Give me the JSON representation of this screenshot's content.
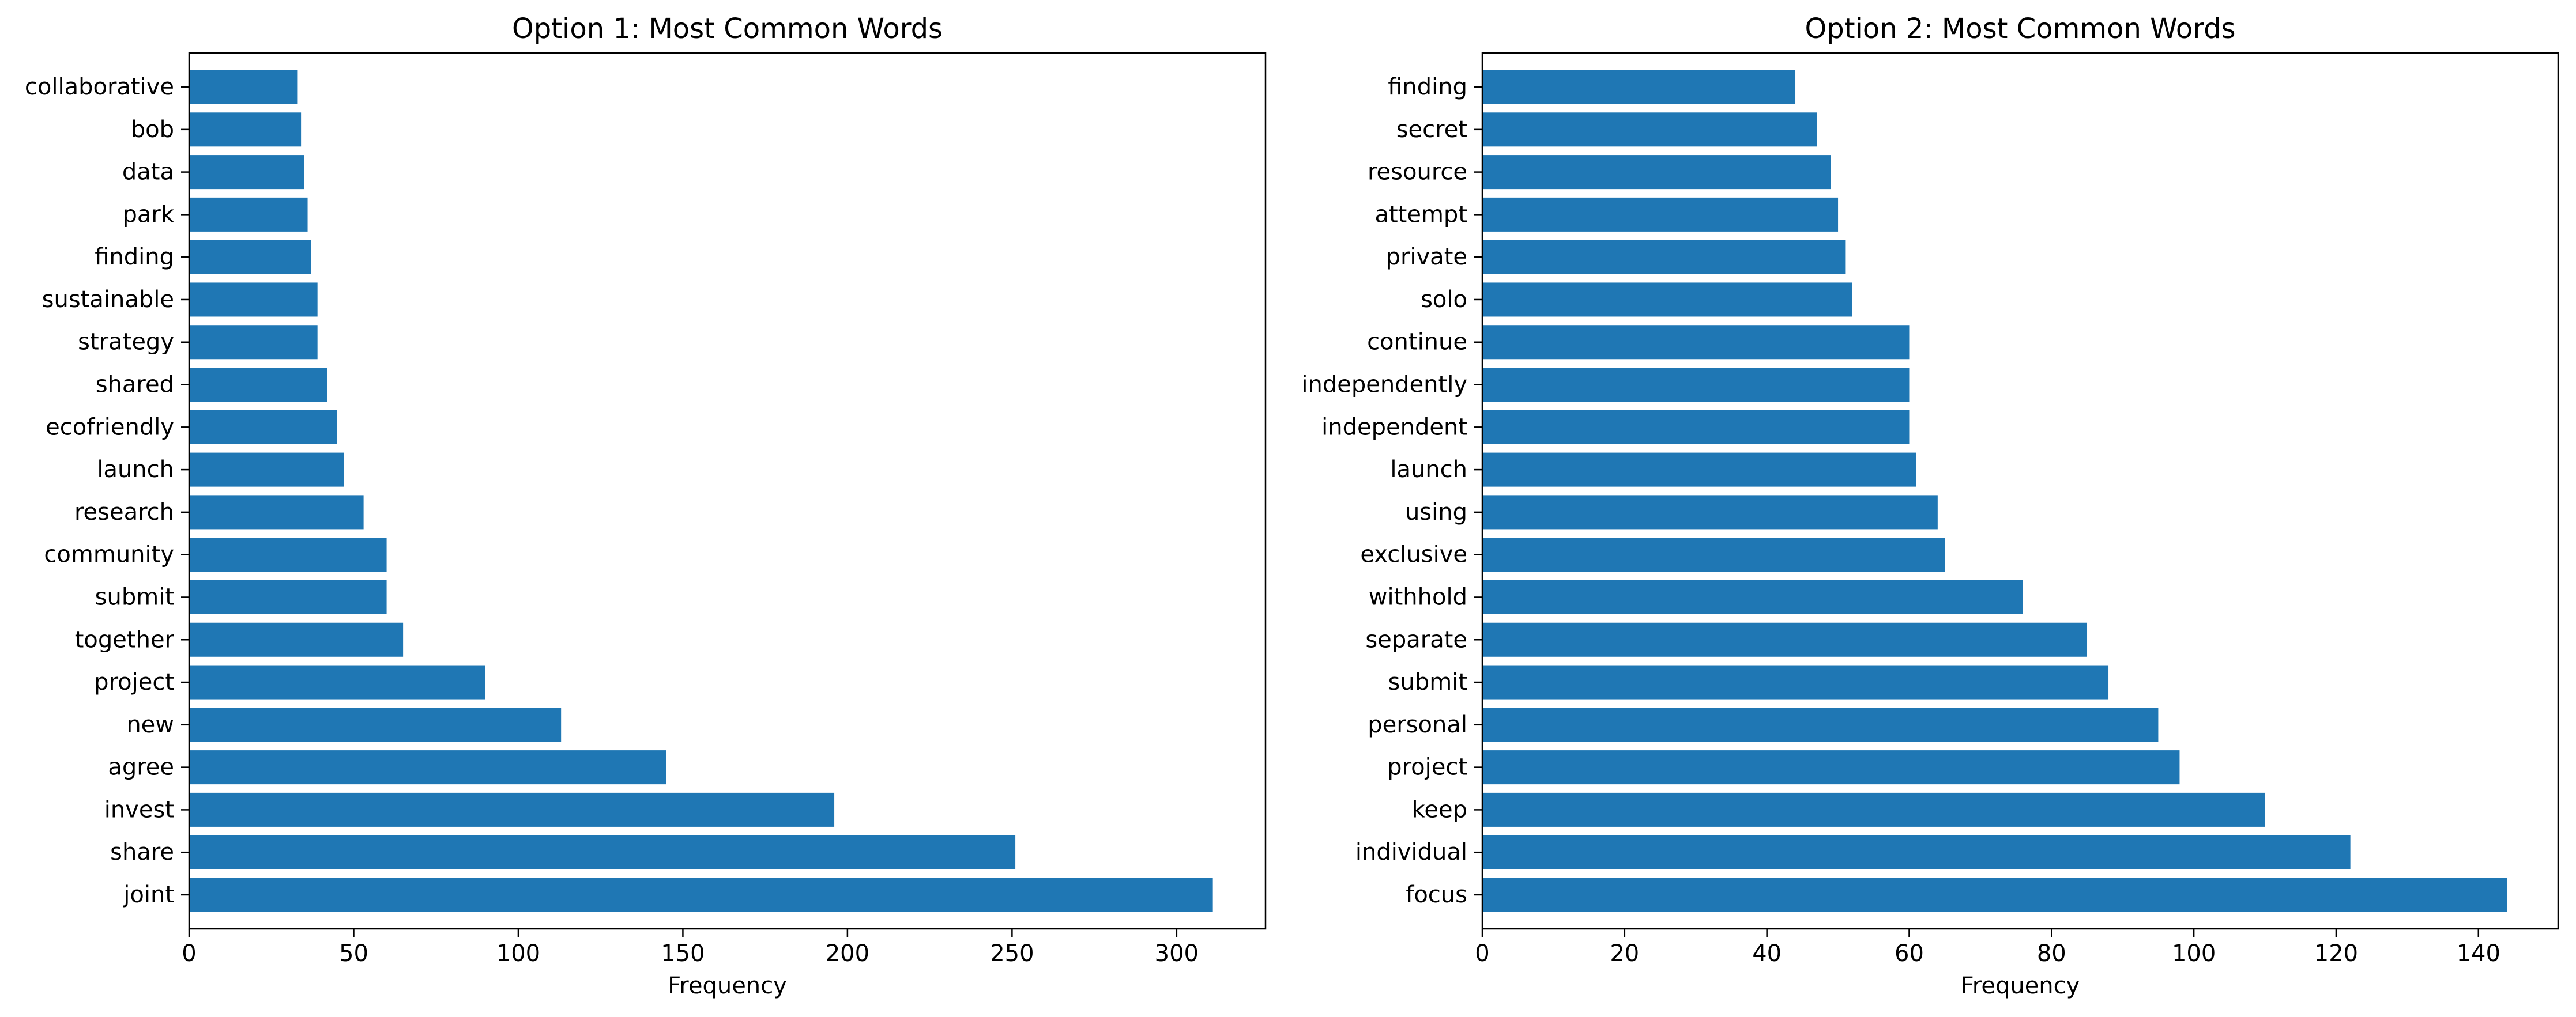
{
  "chart_data": [
    {
      "type": "bar",
      "orientation": "horizontal",
      "title": "Option 1: Most Common Words",
      "xlabel": "Frequency",
      "ylabel": "",
      "xlim": [
        0,
        327
      ],
      "xticks": [
        0,
        50,
        100,
        150,
        200,
        250,
        300
      ],
      "grid": false,
      "bar_color": "#1f77b4",
      "categories": [
        "joint",
        "share",
        "invest",
        "agree",
        "new",
        "project",
        "together",
        "submit",
        "community",
        "research",
        "launch",
        "ecofriendly",
        "shared",
        "strategy",
        "sustainable",
        "finding",
        "park",
        "data",
        "bob",
        "collaborative"
      ],
      "values": [
        311,
        251,
        196,
        145,
        113,
        90,
        65,
        60,
        60,
        53,
        47,
        45,
        42,
        39,
        39,
        37,
        36,
        35,
        34,
        33
      ]
    },
    {
      "type": "bar",
      "orientation": "horizontal",
      "title": "Option 2: Most Common Words",
      "xlabel": "Frequency",
      "ylabel": "",
      "xlim": [
        0,
        151.2
      ],
      "xticks": [
        0,
        20,
        40,
        60,
        80,
        100,
        120,
        140
      ],
      "grid": false,
      "bar_color": "#1f77b4",
      "categories": [
        "focus",
        "individual",
        "keep",
        "project",
        "personal",
        "submit",
        "separate",
        "withhold",
        "exclusive",
        "using",
        "launch",
        "independent",
        "independently",
        "continue",
        "solo",
        "private",
        "attempt",
        "resource",
        "secret",
        "finding"
      ],
      "values": [
        144,
        122,
        110,
        98,
        95,
        88,
        85,
        76,
        65,
        64,
        61,
        60,
        60,
        60,
        52,
        51,
        50,
        49,
        47,
        44
      ]
    }
  ]
}
